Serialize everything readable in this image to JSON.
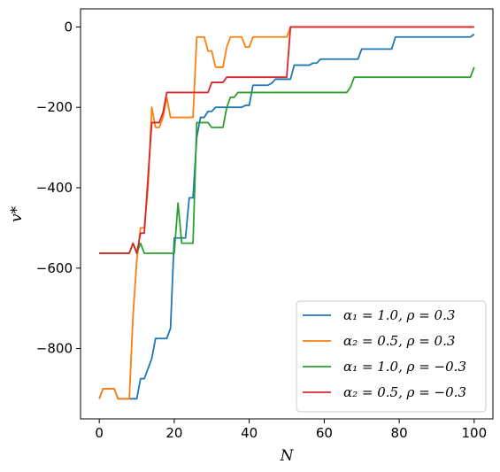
{
  "chart_data": {
    "type": "line",
    "title": "",
    "xlabel": "N",
    "ylabel": "v*",
    "xlim": [
      -5,
      105
    ],
    "ylim": [
      -975,
      45
    ],
    "xticks": [
      0,
      20,
      40,
      60,
      80,
      100
    ],
    "yticks": [
      -800,
      -600,
      -400,
      -200,
      0
    ],
    "xtick_labels": [
      "0",
      "20",
      "40",
      "60",
      "80",
      "100"
    ],
    "ytick_labels": [
      "−800",
      "−600",
      "−400",
      "−200",
      "0"
    ],
    "legend_position": "lower-right",
    "grid": false,
    "series": [
      {
        "name": "α₁ = 1.0, ρ = 0.3",
        "color": "#1f77b4",
        "x": [
          0,
          1,
          2,
          3,
          4,
          5,
          6,
          7,
          8,
          9,
          10,
          11,
          12,
          13,
          14,
          15,
          16,
          17,
          18,
          19,
          20,
          21,
          22,
          23,
          24,
          25,
          26,
          27,
          28,
          29,
          30,
          31,
          32,
          33,
          34,
          35,
          36,
          37,
          38,
          39,
          40,
          41,
          42,
          43,
          44,
          45,
          46,
          47,
          48,
          49,
          50,
          51,
          52,
          53,
          54,
          55,
          56,
          57,
          58,
          59,
          60,
          61,
          62,
          63,
          64,
          65,
          66,
          67,
          68,
          69,
          70,
          71,
          72,
          73,
          74,
          75,
          76,
          77,
          78,
          79,
          80,
          81,
          82,
          83,
          84,
          85,
          86,
          87,
          88,
          89,
          90,
          91,
          92,
          93,
          94,
          95,
          96,
          97,
          98,
          99,
          100
        ],
        "y": [
          -925,
          -900,
          -900,
          -900,
          -900,
          -925,
          -925,
          -925,
          -925,
          -925,
          -925,
          -875,
          -875,
          -850,
          -825,
          -775,
          -775,
          -775,
          -775,
          -750,
          -525,
          -525,
          -525,
          -525,
          -425,
          -425,
          -275,
          -225,
          -225,
          -210,
          -210,
          -200,
          -200,
          -200,
          -200,
          -200,
          -200,
          -200,
          -200,
          -195,
          -195,
          -145,
          -145,
          -145,
          -145,
          -145,
          -140,
          -130,
          -130,
          -130,
          -130,
          -130,
          -95,
          -95,
          -95,
          -95,
          -95,
          -90,
          -90,
          -80,
          -80,
          -80,
          -80,
          -80,
          -80,
          -80,
          -80,
          -80,
          -80,
          -80,
          -55,
          -55,
          -55,
          -55,
          -55,
          -55,
          -55,
          -55,
          -55,
          -25,
          -25,
          -25,
          -25,
          -25,
          -25,
          -25,
          -25,
          -25,
          -25,
          -25,
          -25,
          -25,
          -25,
          -25,
          -25,
          -25,
          -25,
          -25,
          -25,
          -25,
          -18
        ]
      },
      {
        "name": "α₂ = 0.5, ρ = 0.3",
        "color": "#ff7f0e",
        "x": [
          0,
          1,
          2,
          3,
          4,
          5,
          6,
          7,
          8,
          9,
          10,
          11,
          12,
          13,
          14,
          15,
          16,
          17,
          18,
          19,
          20,
          21,
          22,
          23,
          24,
          25,
          26,
          27,
          28,
          29,
          30,
          31,
          32,
          33,
          34,
          35,
          36,
          37,
          38,
          39,
          40,
          41,
          42,
          43,
          44,
          45,
          46,
          47,
          48,
          49,
          50,
          51,
          52,
          53,
          54,
          55,
          56,
          57,
          58,
          59,
          60,
          61,
          62,
          63,
          64,
          65,
          66,
          67,
          68,
          69,
          70,
          71,
          72,
          73,
          74,
          75,
          76,
          77,
          78,
          79,
          80,
          81,
          82,
          83,
          84,
          85,
          86,
          87,
          88,
          89,
          90,
          91,
          92,
          93,
          94,
          95,
          96,
          97,
          98,
          99,
          100
        ],
        "y": [
          -925,
          -900,
          -900,
          -900,
          -900,
          -925,
          -925,
          -925,
          -925,
          -720,
          -580,
          -500,
          -500,
          -400,
          -200,
          -250,
          -250,
          -225,
          -175,
          -225,
          -225,
          -225,
          -225,
          -225,
          -225,
          -225,
          -25,
          -25,
          -25,
          -60,
          -60,
          -100,
          -100,
          -100,
          -50,
          -25,
          -25,
          -25,
          -25,
          -50,
          -50,
          -25,
          -25,
          -25,
          -25,
          -25,
          -25,
          -25,
          -25,
          -25,
          -25,
          0,
          0,
          0,
          0,
          0,
          0,
          0,
          0,
          0,
          0,
          0,
          0,
          0,
          0,
          0,
          0,
          0,
          0,
          0,
          0,
          0,
          0,
          0,
          0,
          0,
          0,
          0,
          0,
          0,
          0,
          0,
          0,
          0,
          0,
          0,
          0,
          0,
          0,
          0,
          0,
          0,
          0,
          0,
          0,
          0,
          0,
          0,
          0,
          0,
          0
        ]
      },
      {
        "name": "α₁ = 1.0, ρ = −0.3",
        "color": "#2ca02c",
        "x": [
          0,
          1,
          2,
          3,
          4,
          5,
          6,
          7,
          8,
          9,
          10,
          11,
          12,
          13,
          14,
          15,
          16,
          17,
          18,
          19,
          20,
          21,
          22,
          23,
          24,
          25,
          26,
          27,
          28,
          29,
          30,
          31,
          32,
          33,
          34,
          35,
          36,
          37,
          38,
          39,
          40,
          41,
          42,
          43,
          44,
          45,
          46,
          47,
          48,
          49,
          50,
          51,
          52,
          53,
          54,
          55,
          56,
          57,
          58,
          59,
          60,
          61,
          62,
          63,
          64,
          65,
          66,
          67,
          68,
          69,
          70,
          71,
          72,
          73,
          74,
          75,
          76,
          77,
          78,
          79,
          80,
          81,
          82,
          83,
          84,
          85,
          86,
          87,
          88,
          89,
          90,
          91,
          92,
          93,
          94,
          95,
          96,
          97,
          98,
          99,
          100
        ],
        "y": [
          -563,
          -563,
          -563,
          -563,
          -563,
          -563,
          -563,
          -563,
          -563,
          -538,
          -563,
          -538,
          -563,
          -563,
          -563,
          -563,
          -563,
          -563,
          -563,
          -563,
          -563,
          -438,
          -538,
          -538,
          -538,
          -538,
          -238,
          -238,
          -238,
          -238,
          -250,
          -250,
          -250,
          -250,
          -200,
          -175,
          -175,
          -163,
          -163,
          -163,
          -163,
          -163,
          -163,
          -163,
          -163,
          -163,
          -163,
          -163,
          -163,
          -163,
          -163,
          -163,
          -163,
          -163,
          -163,
          -163,
          -163,
          -163,
          -163,
          -163,
          -163,
          -163,
          -163,
          -163,
          -163,
          -163,
          -163,
          -150,
          -125,
          -125,
          -125,
          -125,
          -125,
          -125,
          -125,
          -125,
          -125,
          -125,
          -125,
          -125,
          -125,
          -125,
          -125,
          -125,
          -125,
          -125,
          -125,
          -125,
          -125,
          -125,
          -125,
          -125,
          -125,
          -125,
          -125,
          -125,
          -125,
          -125,
          -125,
          -125,
          -100
        ]
      },
      {
        "name": "α₂ = 0.5, ρ = −0.3",
        "color": "#d62728",
        "x": [
          0,
          1,
          2,
          3,
          4,
          5,
          6,
          7,
          8,
          9,
          10,
          11,
          12,
          13,
          14,
          15,
          16,
          17,
          18,
          19,
          20,
          21,
          22,
          23,
          24,
          25,
          26,
          27,
          28,
          29,
          30,
          31,
          32,
          33,
          34,
          35,
          36,
          37,
          38,
          39,
          40,
          41,
          42,
          43,
          44,
          45,
          46,
          47,
          48,
          49,
          50,
          51,
          52,
          53,
          54,
          55,
          56,
          57,
          58,
          59,
          60,
          61,
          62,
          63,
          64,
          65,
          66,
          67,
          68,
          69,
          70,
          71,
          72,
          73,
          74,
          75,
          76,
          77,
          78,
          79,
          80,
          81,
          82,
          83,
          84,
          85,
          86,
          87,
          88,
          89,
          90,
          91,
          92,
          93,
          94,
          95,
          96,
          97,
          98,
          99,
          100
        ],
        "y": [
          -563,
          -563,
          -563,
          -563,
          -563,
          -563,
          -563,
          -563,
          -563,
          -538,
          -563,
          -513,
          -513,
          -375,
          -238,
          -238,
          -238,
          -213,
          -163,
          -163,
          -163,
          -163,
          -163,
          -163,
          -163,
          -163,
          -163,
          -163,
          -163,
          -163,
          -138,
          -138,
          -138,
          -138,
          -125,
          -125,
          -125,
          -125,
          -125,
          -125,
          -125,
          -125,
          -125,
          -125,
          -125,
          -125,
          -125,
          -125,
          -125,
          -125,
          -125,
          0,
          0,
          0,
          0,
          0,
          0,
          0,
          0,
          0,
          0,
          0,
          0,
          0,
          0,
          0,
          0,
          0,
          0,
          0,
          0,
          0,
          0,
          0,
          0,
          0,
          0,
          0,
          0,
          0,
          0,
          0,
          0,
          0,
          0,
          0,
          0,
          0,
          0,
          0,
          0,
          0,
          0,
          0,
          0,
          0,
          0,
          0,
          0,
          0,
          0
        ]
      }
    ]
  }
}
